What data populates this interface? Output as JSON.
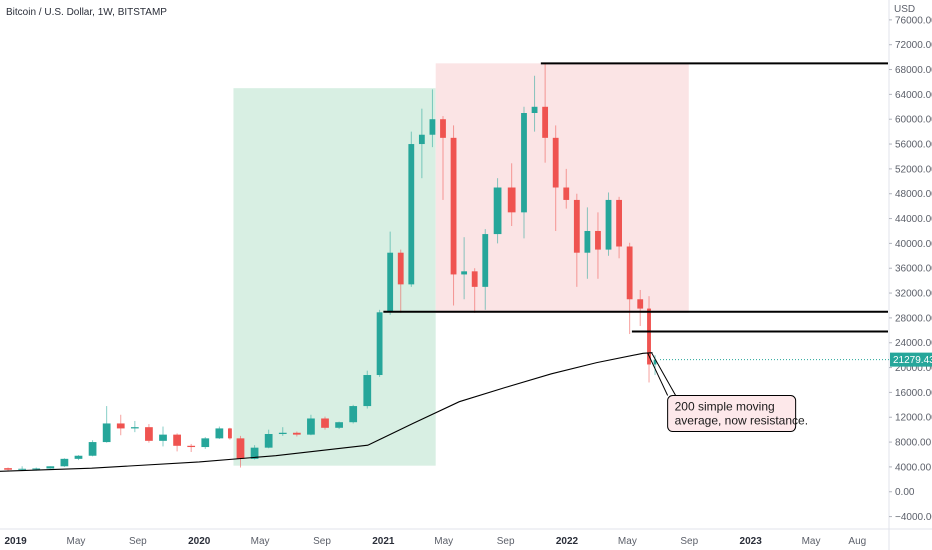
{
  "chart_data": {
    "type": "candlestick",
    "title": "Bitcoin / U.S. Dollar, 1W, BITSTAMP",
    "y_unit_label": "USD",
    "y_ticks": [
      "76000.00",
      "72000.00",
      "68000.00",
      "64000.00",
      "60000.00",
      "56000.00",
      "52000.00",
      "48000.00",
      "44000.00",
      "40000.00",
      "36000.00",
      "32000.00",
      "28000.00",
      "24000.00",
      "20000.00",
      "16000.00",
      "12000.00",
      "8000.00",
      "4000.00",
      "0.00",
      "−4000.00"
    ],
    "y_tick_values": [
      76000,
      72000,
      68000,
      64000,
      60000,
      56000,
      52000,
      48000,
      44000,
      40000,
      36000,
      32000,
      28000,
      24000,
      20000,
      16000,
      12000,
      8000,
      4000,
      0,
      -4000
    ],
    "ylim": [
      -6000,
      79200
    ],
    "x_ticks": [
      "2019",
      "May",
      "Sep",
      "2020",
      "May",
      "Sep",
      "2021",
      "May",
      "Sep",
      "2022",
      "May",
      "Sep",
      "2023",
      "May",
      "Aug"
    ],
    "x_tick_dates": [
      "2019-01-01",
      "2019-05-01",
      "2019-09-01",
      "2020-01-01",
      "2020-05-01",
      "2020-09-01",
      "2021-01-01",
      "2021-05-01",
      "2021-09-01",
      "2022-01-01",
      "2022-05-01",
      "2022-09-01",
      "2023-01-01",
      "2023-05-01",
      "2023-08-01"
    ],
    "xlim": [
      "2018-12-01",
      "2023-10-01"
    ],
    "last_price_label": "21279.43",
    "last_price": 21279.43,
    "colors": {
      "up": "#26a69a",
      "down": "#ef5350",
      "sma": "#000000",
      "green_zone": "#d8efe3",
      "red_zone": "#fbe4e5",
      "last_price_bg": "#26a69a"
    },
    "candles": [
      {
        "date": "2018-12-03",
        "o": 3800,
        "h": 3900,
        "l": 3300,
        "c": 3550
      },
      {
        "date": "2018-12-31",
        "o": 3550,
        "h": 4100,
        "l": 3400,
        "c": 3700
      },
      {
        "date": "2019-01-28",
        "o": 3700,
        "h": 3900,
        "l": 3400,
        "c": 3750
      },
      {
        "date": "2019-02-25",
        "o": 3750,
        "h": 4100,
        "l": 3700,
        "c": 4100
      },
      {
        "date": "2019-03-25",
        "o": 4100,
        "h": 5400,
        "l": 4000,
        "c": 5300
      },
      {
        "date": "2019-04-22",
        "o": 5300,
        "h": 5900,
        "l": 5100,
        "c": 5800
      },
      {
        "date": "2019-05-20",
        "o": 5800,
        "h": 8300,
        "l": 5700,
        "c": 8000
      },
      {
        "date": "2019-06-17",
        "o": 8000,
        "h": 13800,
        "l": 7900,
        "c": 11000
      },
      {
        "date": "2019-07-15",
        "o": 11000,
        "h": 12400,
        "l": 9100,
        "c": 10200
      },
      {
        "date": "2019-08-12",
        "o": 10200,
        "h": 11400,
        "l": 9600,
        "c": 10400
      },
      {
        "date": "2019-09-09",
        "o": 10400,
        "h": 10900,
        "l": 7900,
        "c": 8200
      },
      {
        "date": "2019-10-07",
        "o": 8200,
        "h": 10500,
        "l": 7300,
        "c": 9200
      },
      {
        "date": "2019-11-04",
        "o": 9200,
        "h": 9400,
        "l": 6500,
        "c": 7400
      },
      {
        "date": "2019-12-02",
        "o": 7400,
        "h": 7700,
        "l": 6400,
        "c": 7200
      },
      {
        "date": "2019-12-30",
        "o": 7200,
        "h": 8800,
        "l": 6900,
        "c": 8600
      },
      {
        "date": "2020-01-27",
        "o": 8600,
        "h": 10500,
        "l": 8500,
        "c": 10200
      },
      {
        "date": "2020-02-24",
        "o": 10200,
        "h": 10300,
        "l": 8400,
        "c": 8600
      },
      {
        "date": "2020-03-09",
        "o": 8600,
        "h": 9000,
        "l": 3900,
        "c": 5300
      },
      {
        "date": "2020-04-06",
        "o": 5300,
        "h": 7500,
        "l": 5200,
        "c": 7100
      },
      {
        "date": "2020-05-04",
        "o": 7100,
        "h": 10000,
        "l": 7000,
        "c": 9300
      },
      {
        "date": "2020-06-01",
        "o": 9300,
        "h": 10400,
        "l": 9000,
        "c": 9500
      },
      {
        "date": "2020-06-29",
        "o": 9500,
        "h": 9700,
        "l": 8900,
        "c": 9200
      },
      {
        "date": "2020-07-27",
        "o": 9200,
        "h": 12400,
        "l": 9100,
        "c": 11800
      },
      {
        "date": "2020-08-24",
        "o": 11800,
        "h": 12100,
        "l": 10000,
        "c": 10300
      },
      {
        "date": "2020-09-21",
        "o": 10300,
        "h": 11300,
        "l": 10100,
        "c": 11200
      },
      {
        "date": "2020-10-19",
        "o": 11200,
        "h": 14000,
        "l": 11000,
        "c": 13800
      },
      {
        "date": "2020-11-16",
        "o": 13800,
        "h": 19500,
        "l": 13400,
        "c": 18800
      },
      {
        "date": "2020-12-14",
        "o": 18800,
        "h": 29300,
        "l": 18500,
        "c": 28900
      },
      {
        "date": "2021-01-04",
        "o": 28900,
        "h": 41900,
        "l": 28500,
        "c": 38500
      },
      {
        "date": "2021-01-25",
        "o": 38500,
        "h": 39000,
        "l": 28800,
        "c": 33400
      },
      {
        "date": "2021-02-15",
        "o": 33400,
        "h": 58000,
        "l": 33000,
        "c": 56000
      },
      {
        "date": "2021-03-08",
        "o": 56000,
        "h": 61700,
        "l": 50500,
        "c": 57500
      },
      {
        "date": "2021-03-29",
        "o": 57500,
        "h": 64800,
        "l": 55500,
        "c": 60000
      },
      {
        "date": "2021-04-19",
        "o": 60000,
        "h": 60500,
        "l": 47000,
        "c": 57000
      },
      {
        "date": "2021-05-10",
        "o": 57000,
        "h": 59000,
        "l": 30000,
        "c": 35000
      },
      {
        "date": "2021-05-31",
        "o": 35000,
        "h": 41000,
        "l": 31000,
        "c": 35500
      },
      {
        "date": "2021-06-21",
        "o": 35500,
        "h": 36000,
        "l": 28800,
        "c": 33000
      },
      {
        "date": "2021-07-12",
        "o": 33000,
        "h": 42300,
        "l": 29300,
        "c": 41500
      },
      {
        "date": "2021-08-02",
        "o": 41500,
        "h": 50500,
        "l": 40000,
        "c": 49000
      },
      {
        "date": "2021-08-30",
        "o": 49000,
        "h": 52900,
        "l": 42800,
        "c": 45000
      },
      {
        "date": "2021-09-27",
        "o": 45000,
        "h": 62000,
        "l": 40800,
        "c": 61000
      },
      {
        "date": "2021-10-18",
        "o": 61000,
        "h": 67000,
        "l": 58000,
        "c": 62000
      },
      {
        "date": "2021-11-08",
        "o": 62000,
        "h": 69000,
        "l": 53000,
        "c": 57000
      },
      {
        "date": "2021-11-29",
        "o": 57000,
        "h": 59000,
        "l": 42000,
        "c": 49000
      },
      {
        "date": "2021-12-20",
        "o": 49000,
        "h": 52000,
        "l": 45600,
        "c": 47000
      },
      {
        "date": "2022-01-10",
        "o": 47000,
        "h": 48000,
        "l": 33000,
        "c": 38500
      },
      {
        "date": "2022-01-31",
        "o": 38500,
        "h": 45800,
        "l": 34300,
        "c": 42000
      },
      {
        "date": "2022-02-21",
        "o": 42000,
        "h": 45000,
        "l": 34300,
        "c": 39000
      },
      {
        "date": "2022-03-14",
        "o": 39000,
        "h": 48200,
        "l": 38000,
        "c": 47000
      },
      {
        "date": "2022-04-04",
        "o": 47000,
        "h": 47500,
        "l": 37600,
        "c": 39500
      },
      {
        "date": "2022-04-25",
        "o": 39500,
        "h": 40100,
        "l": 25400,
        "c": 31000
      },
      {
        "date": "2022-05-16",
        "o": 31000,
        "h": 32500,
        "l": 26700,
        "c": 29500
      },
      {
        "date": "2022-06-06",
        "o": 29500,
        "h": 31500,
        "l": 17600,
        "c": 20500
      },
      {
        "date": "2022-06-20",
        "o": 20500,
        "h": 22000,
        "l": 18800,
        "c": 21279
      }
    ],
    "sma_200": [
      {
        "date": "2018-12-01",
        "v": 3300
      },
      {
        "date": "2019-06-01",
        "v": 3800
      },
      {
        "date": "2020-01-01",
        "v": 4800
      },
      {
        "date": "2020-06-01",
        "v": 5800
      },
      {
        "date": "2020-12-01",
        "v": 7500
      },
      {
        "date": "2021-03-01",
        "v": 11000
      },
      {
        "date": "2021-06-01",
        "v": 14500
      },
      {
        "date": "2021-09-01",
        "v": 16800
      },
      {
        "date": "2021-12-01",
        "v": 19000
      },
      {
        "date": "2022-03-01",
        "v": 20800
      },
      {
        "date": "2022-06-01",
        "v": 22300
      },
      {
        "date": "2022-06-20",
        "v": 22400
      }
    ],
    "green_zone": {
      "x": [
        "2020-03-09",
        "2021-04-15"
      ],
      "y": [
        4200,
        65000
      ]
    },
    "red_zone": {
      "x": [
        "2021-04-15",
        "2022-08-31"
      ],
      "y": [
        28800,
        69000
      ]
    },
    "lines": [
      {
        "x": [
          "2021-11-10",
          "2023-10-01"
        ],
        "y": 69000
      },
      {
        "x": [
          "2021-01-01",
          "2023-10-01"
        ],
        "y": 29000
      },
      {
        "x": [
          "2022-05-10",
          "2023-10-01"
        ],
        "y": 25800
      }
    ],
    "annotation": {
      "lines": [
        "200 simple moving",
        "average, now resistance."
      ],
      "arrow_to": {
        "date": "2022-06-10",
        "v": 22400
      },
      "box_anchor": {
        "date": "2022-07-20",
        "v": 15500
      }
    }
  }
}
